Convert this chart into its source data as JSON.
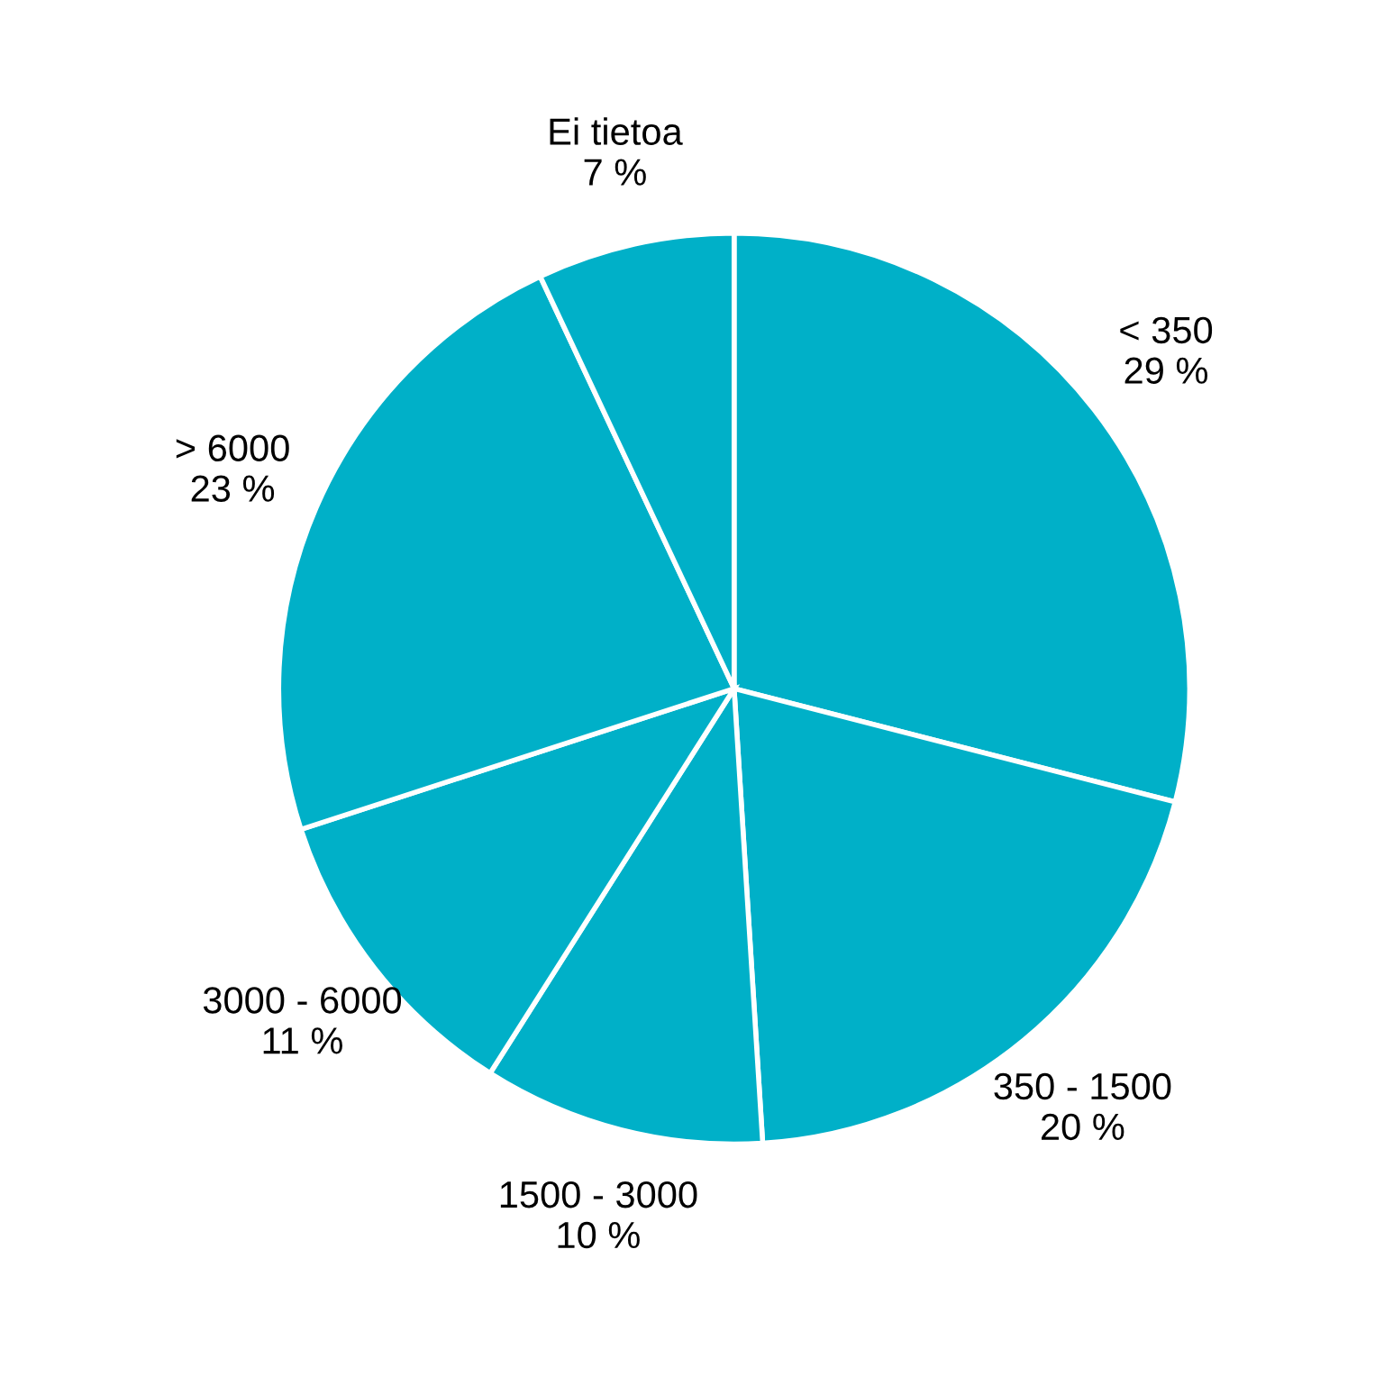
{
  "chart_data": {
    "type": "pie",
    "categories": [
      "< 350",
      "350 - 1500",
      "1500 - 3000",
      "3000 - 6000",
      "> 6000",
      "Ei tietoa"
    ],
    "values": [
      29,
      20,
      10,
      11,
      23,
      7
    ],
    "value_labels": [
      "29 %",
      "20 %",
      "10 %",
      "11 %",
      "23 %",
      "7 %"
    ],
    "colors": [
      "#00b0c8",
      "#00b0c8",
      "#00b0c8",
      "#00b0c8",
      "#00b0c8",
      "#00b0c8"
    ],
    "legend": false
  }
}
